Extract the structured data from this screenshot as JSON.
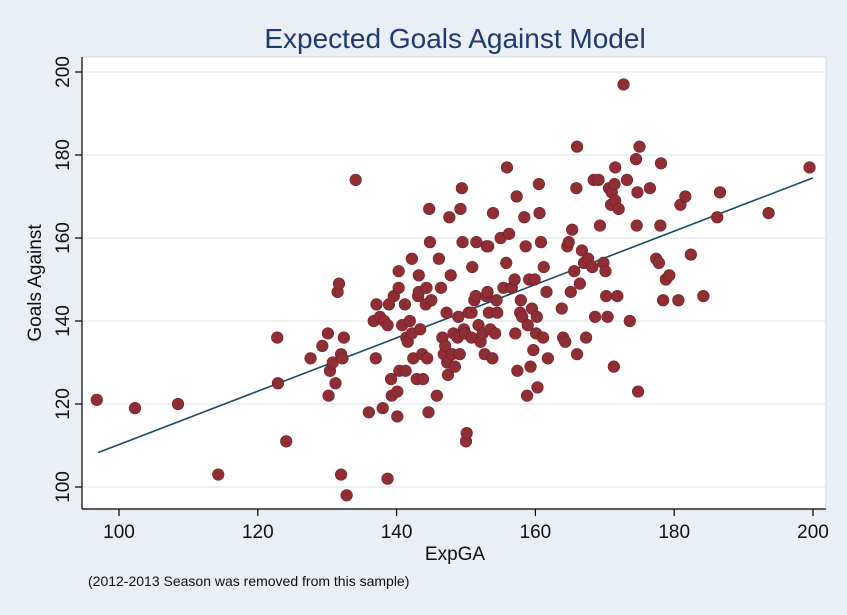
{
  "chart_data": {
    "type": "scatter",
    "title": "Expected Goals Against Model",
    "xlabel": "ExpGA",
    "ylabel": "Goals Against",
    "note": "(2012-2013 Season was removed from this sample)",
    "xlim": [
      96,
      202
    ],
    "ylim": [
      96,
      202
    ],
    "xticks": [
      100,
      120,
      140,
      160,
      180,
      200
    ],
    "yticks": [
      100,
      120,
      140,
      160,
      180,
      200
    ],
    "grid": "horizontal",
    "fit_line": {
      "x": [
        97,
        200
      ],
      "y": [
        108.3,
        174.5
      ]
    },
    "colors": {
      "point": "#8f2e34",
      "line": "#1b4a66",
      "title": "#1f3a6e",
      "background": "#e9eff4"
    },
    "points": [
      [
        96.8,
        121
      ],
      [
        102.3,
        119
      ],
      [
        108.5,
        120
      ],
      [
        114.3,
        103
      ],
      [
        122.8,
        136
      ],
      [
        122.9,
        125
      ],
      [
        124.1,
        111
      ],
      [
        127.6,
        131
      ],
      [
        129.3,
        134
      ],
      [
        130.1,
        137
      ],
      [
        130.2,
        122
      ],
      [
        130.4,
        128
      ],
      [
        130.8,
        130
      ],
      [
        131.2,
        125
      ],
      [
        131.5,
        147
      ],
      [
        131.7,
        149
      ],
      [
        132.0,
        132
      ],
      [
        132.0,
        103
      ],
      [
        132.2,
        131
      ],
      [
        132.4,
        136
      ],
      [
        132.8,
        98
      ],
      [
        134.1,
        174
      ],
      [
        136.0,
        118
      ],
      [
        136.7,
        140
      ],
      [
        137.0,
        131
      ],
      [
        137.1,
        144
      ],
      [
        137.6,
        141
      ],
      [
        138.0,
        119
      ],
      [
        138.2,
        140
      ],
      [
        138.7,
        139
      ],
      [
        138.7,
        102
      ],
      [
        138.9,
        144
      ],
      [
        139.2,
        126
      ],
      [
        139.3,
        122
      ],
      [
        139.6,
        146
      ],
      [
        140.1,
        123
      ],
      [
        140.1,
        117
      ],
      [
        140.3,
        152
      ],
      [
        140.3,
        148
      ],
      [
        140.4,
        128
      ],
      [
        140.8,
        139
      ],
      [
        141.2,
        144
      ],
      [
        141.3,
        128
      ],
      [
        141.4,
        136
      ],
      [
        141.6,
        135
      ],
      [
        141.9,
        140
      ],
      [
        142.2,
        137
      ],
      [
        142.2,
        155
      ],
      [
        142.4,
        131
      ],
      [
        142.9,
        126
      ],
      [
        143.1,
        146
      ],
      [
        143.2,
        151
      ],
      [
        143.2,
        147
      ],
      [
        143.4,
        138
      ],
      [
        143.7,
        132
      ],
      [
        143.8,
        126
      ],
      [
        144.2,
        144
      ],
      [
        144.3,
        148
      ],
      [
        144.4,
        131
      ],
      [
        144.6,
        118
      ],
      [
        144.7,
        167
      ],
      [
        144.8,
        159
      ],
      [
        145.0,
        145
      ],
      [
        145.8,
        122
      ],
      [
        146.1,
        155
      ],
      [
        146.4,
        148
      ],
      [
        146.6,
        136
      ],
      [
        146.8,
        132
      ],
      [
        147.0,
        134
      ],
      [
        147.2,
        142
      ],
      [
        147.3,
        130
      ],
      [
        147.4,
        127
      ],
      [
        147.6,
        165
      ],
      [
        147.8,
        151
      ],
      [
        148.0,
        132
      ],
      [
        148.2,
        137
      ],
      [
        148.4,
        129
      ],
      [
        148.8,
        136
      ],
      [
        148.9,
        141
      ],
      [
        149.1,
        132
      ],
      [
        149.2,
        167
      ],
      [
        149.4,
        172
      ],
      [
        149.5,
        159
      ],
      [
        149.7,
        138
      ],
      [
        149.9,
        137
      ],
      [
        150.0,
        111
      ],
      [
        150.1,
        113
      ],
      [
        150.4,
        142
      ],
      [
        150.8,
        142
      ],
      [
        150.8,
        136
      ],
      [
        150.9,
        153
      ],
      [
        151.2,
        145
      ],
      [
        151.4,
        146
      ],
      [
        151.5,
        159
      ],
      [
        151.8,
        139
      ],
      [
        152.1,
        135
      ],
      [
        152.4,
        137
      ],
      [
        152.7,
        132
      ],
      [
        152.9,
        146
      ],
      [
        153.0,
        158
      ],
      [
        153.1,
        147
      ],
      [
        153.2,
        158
      ],
      [
        153.3,
        142
      ],
      [
        153.5,
        138
      ],
      [
        153.8,
        131
      ],
      [
        153.9,
        166
      ],
      [
        154.2,
        137
      ],
      [
        154.4,
        145
      ],
      [
        154.5,
        142
      ],
      [
        155.0,
        160
      ],
      [
        155.4,
        148
      ],
      [
        155.8,
        154
      ],
      [
        155.9,
        177
      ],
      [
        156.2,
        161
      ],
      [
        156.6,
        148
      ],
      [
        157.0,
        150
      ],
      [
        157.1,
        137
      ],
      [
        157.3,
        170
      ],
      [
        157.4,
        128
      ],
      [
        157.8,
        142
      ],
      [
        157.9,
        145
      ],
      [
        158.1,
        141
      ],
      [
        158.4,
        165
      ],
      [
        158.6,
        158
      ],
      [
        158.8,
        122
      ],
      [
        158.9,
        139
      ],
      [
        159.1,
        150
      ],
      [
        159.3,
        129
      ],
      [
        159.5,
        143
      ],
      [
        159.7,
        133
      ],
      [
        159.9,
        150
      ],
      [
        160.1,
        137
      ],
      [
        160.2,
        141
      ],
      [
        160.3,
        124
      ],
      [
        160.5,
        173
      ],
      [
        160.6,
        166
      ],
      [
        160.8,
        159
      ],
      [
        161.1,
        136
      ],
      [
        161.2,
        153
      ],
      [
        161.6,
        147
      ],
      [
        161.8,
        131
      ],
      [
        163.8,
        143
      ],
      [
        164.0,
        136
      ],
      [
        164.3,
        135
      ],
      [
        164.6,
        158
      ],
      [
        164.8,
        159
      ],
      [
        165.1,
        147
      ],
      [
        165.3,
        162
      ],
      [
        165.6,
        152
      ],
      [
        165.9,
        172
      ],
      [
        166.0,
        182
      ],
      [
        166.0,
        132
      ],
      [
        166.4,
        149
      ],
      [
        166.7,
        157
      ],
      [
        167.0,
        154
      ],
      [
        167.3,
        136
      ],
      [
        167.6,
        155
      ],
      [
        168.2,
        153
      ],
      [
        168.4,
        174
      ],
      [
        168.6,
        141
      ],
      [
        169.1,
        174
      ],
      [
        169.3,
        163
      ],
      [
        169.8,
        154
      ],
      [
        170.1,
        152
      ],
      [
        170.2,
        146
      ],
      [
        170.4,
        141
      ],
      [
        170.6,
        172
      ],
      [
        170.9,
        168
      ],
      [
        171.0,
        171
      ],
      [
        171.3,
        129
      ],
      [
        171.4,
        173
      ],
      [
        171.5,
        169
      ],
      [
        171.5,
        177
      ],
      [
        171.8,
        146
      ],
      [
        172.0,
        167
      ],
      [
        172.7,
        197
      ],
      [
        173.2,
        174
      ],
      [
        173.6,
        140
      ],
      [
        174.5,
        179
      ],
      [
        174.6,
        163
      ],
      [
        174.7,
        171
      ],
      [
        174.8,
        123
      ],
      [
        175.0,
        182
      ],
      [
        176.5,
        172
      ],
      [
        177.4,
        155
      ],
      [
        177.8,
        154
      ],
      [
        178.0,
        163
      ],
      [
        178.1,
        178
      ],
      [
        178.4,
        145
      ],
      [
        178.8,
        150
      ],
      [
        179.3,
        151
      ],
      [
        180.6,
        145
      ],
      [
        180.9,
        168
      ],
      [
        181.6,
        170
      ],
      [
        182.4,
        156
      ],
      [
        184.2,
        146
      ],
      [
        186.2,
        165
      ],
      [
        186.6,
        171
      ],
      [
        193.6,
        166
      ],
      [
        199.5,
        177
      ]
    ]
  }
}
